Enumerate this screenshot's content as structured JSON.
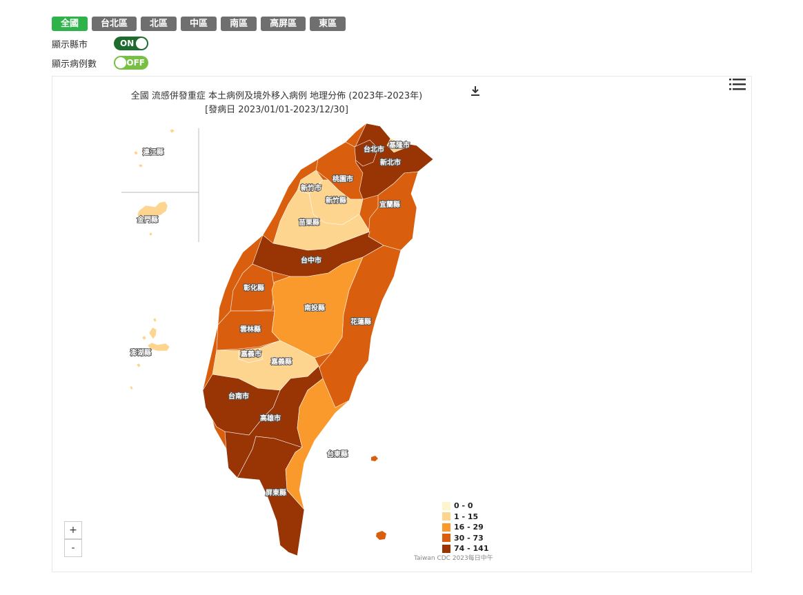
{
  "region_tabs": [
    "全國",
    "台北區",
    "北區",
    "中區",
    "南區",
    "高屏區",
    "東區"
  ],
  "active_tab": "全國",
  "toggles": {
    "show_county": {
      "label": "顯示縣市",
      "state": "ON"
    },
    "show_cases": {
      "label": "顯示病例數",
      "state": "OFF"
    }
  },
  "map": {
    "title_line1": "全國 流感併發重症 本土病例及境外移入病例 地理分佈 (2023年-2023年)",
    "title_line2": "[發病日 2023/01/01-2023/12/30]",
    "zoom_in": "+",
    "zoom_out": "-",
    "credit": "Taiwan CDC 2023每日中午",
    "legend": [
      {
        "label": "0 - 0",
        "color": "#fff5cc"
      },
      {
        "label": "1 - 15",
        "color": "#fdd58f"
      },
      {
        "label": "16 - 29",
        "color": "#fb9a2c"
      },
      {
        "label": "30 - 73",
        "color": "#d95f0e"
      },
      {
        "label": "74 - 141",
        "color": "#993404"
      }
    ],
    "counties": [
      {
        "name": "連江縣",
        "class": 1
      },
      {
        "name": "金門縣",
        "class": 1
      },
      {
        "name": "澎湖縣",
        "class": 1
      },
      {
        "name": "台北市",
        "class": 4
      },
      {
        "name": "基隆市",
        "class": 1
      },
      {
        "name": "新北市",
        "class": 4
      },
      {
        "name": "桃園市",
        "class": 3
      },
      {
        "name": "新竹市",
        "class": 1
      },
      {
        "name": "新竹縣",
        "class": 1
      },
      {
        "name": "苗栗縣",
        "class": 1
      },
      {
        "name": "宜蘭縣",
        "class": 3
      },
      {
        "name": "台中市",
        "class": 4
      },
      {
        "name": "彰化縣",
        "class": 3
      },
      {
        "name": "南投縣",
        "class": 2
      },
      {
        "name": "花蓮縣",
        "class": 3
      },
      {
        "name": "雲林縣",
        "class": 3
      },
      {
        "name": "嘉義市",
        "class": 1
      },
      {
        "name": "嘉義縣",
        "class": 1
      },
      {
        "name": "台南市",
        "class": 4
      },
      {
        "name": "高雄市",
        "class": 4
      },
      {
        "name": "台東縣",
        "class": 2
      },
      {
        "name": "屏東縣",
        "class": 4
      }
    ]
  }
}
